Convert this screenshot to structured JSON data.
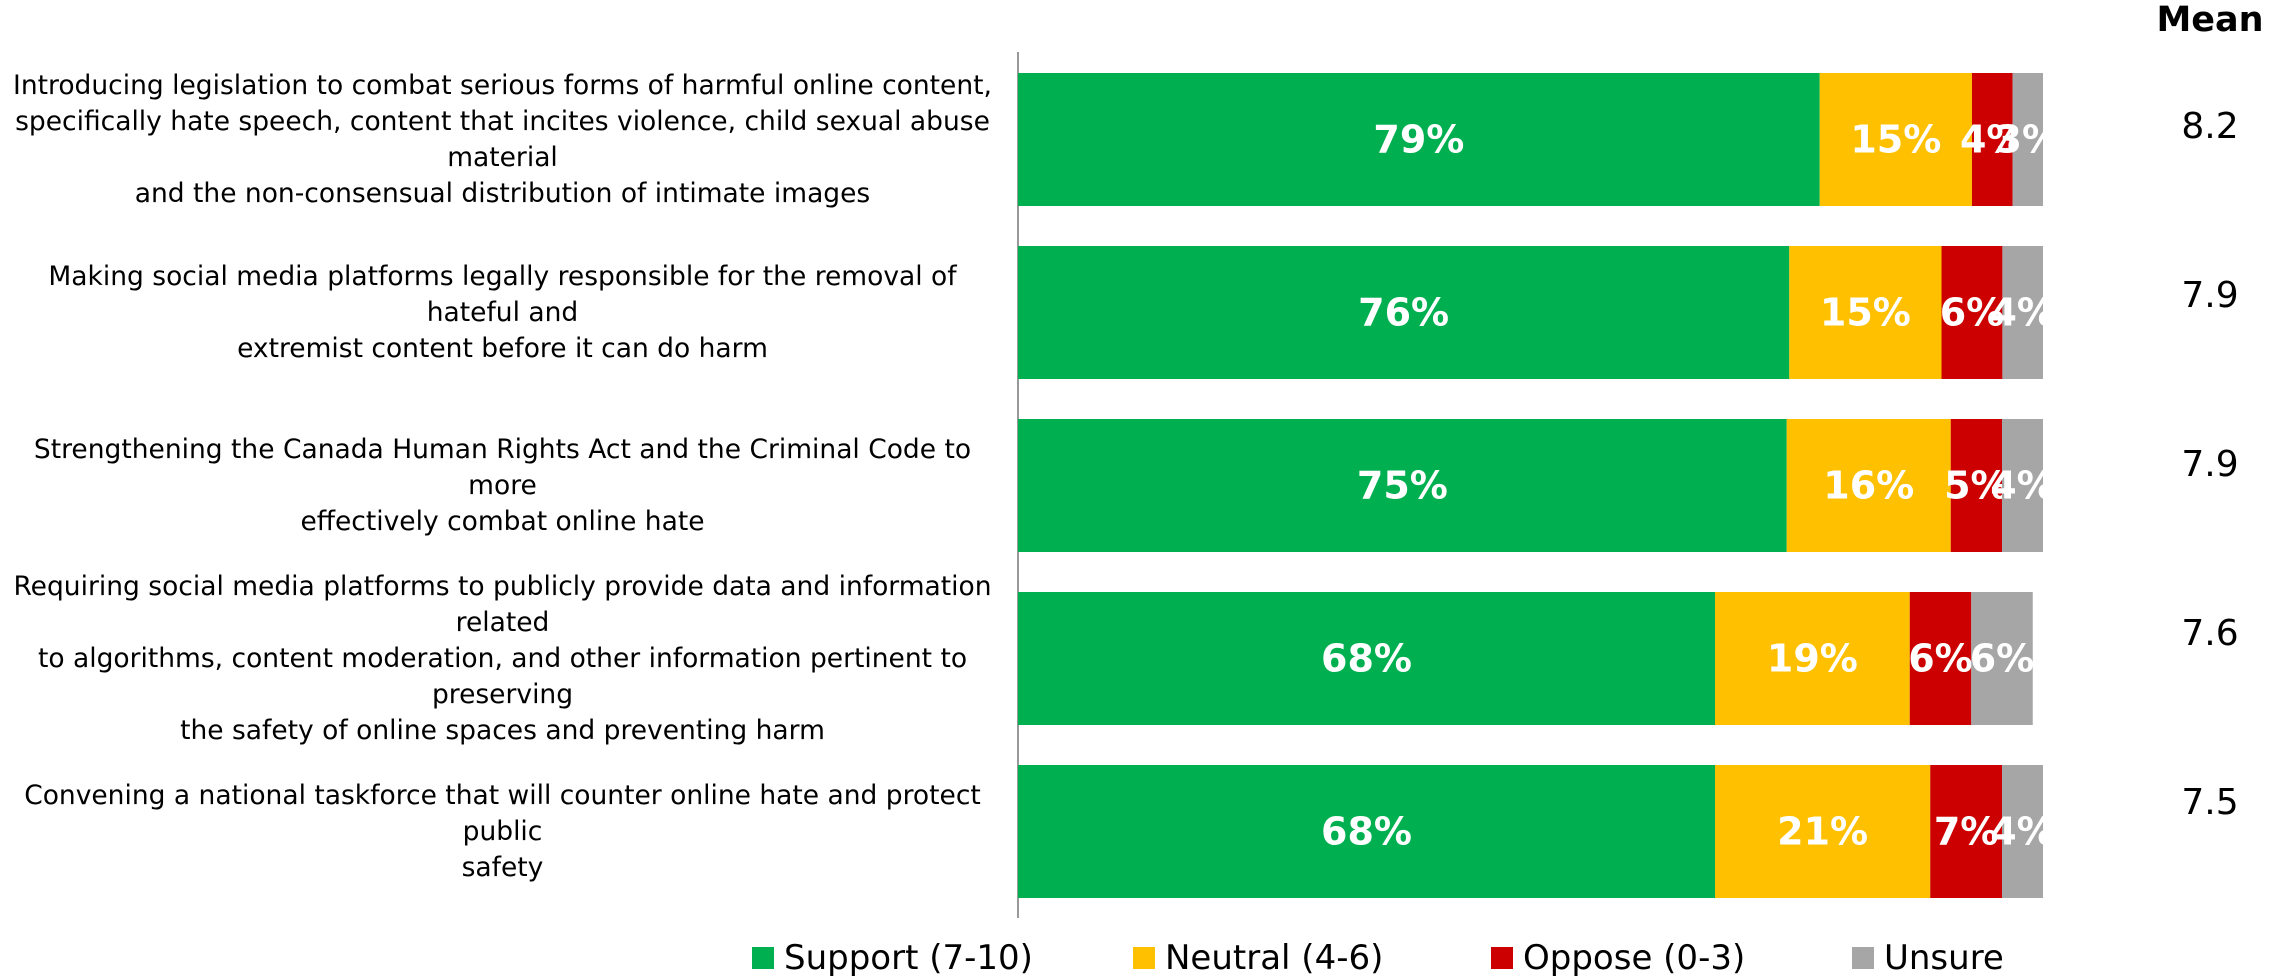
{
  "chart_data": {
    "type": "bar",
    "orientation": "horizontal",
    "stacked": true,
    "categories": [
      "Introducing legislation to combat serious forms of harmful online content, specifically hate speech, content that incites violence, child sexual abuse material and the non-consensual distribution of intimate images",
      "Making social media platforms legally responsible for the removal of hateful and extremist content before it can do harm",
      "Strengthening the Canada Human Rights Act and the Criminal Code to more effectively combat online hate",
      "Requiring social media platforms to publicly provide data and information related to algorithms, content moderation, and other information pertinent to preserving the safety of online spaces and preventing harm",
      "Convening a national taskforce that will counter online hate and protect public safety"
    ],
    "category_lines": [
      [
        "Introducing legislation to combat serious forms of harmful online content,",
        "specifically hate speech, content that incites violence, child sexual abuse material",
        "and the non-consensual distribution of intimate images"
      ],
      [
        "Making social media platforms legally responsible for the removal of hateful and",
        "extremist content before it can do harm"
      ],
      [
        "Strengthening the Canada Human Rights Act and the Criminal Code to more",
        "effectively combat online hate"
      ],
      [
        "Requiring social media platforms to publicly provide data and information related",
        "to algorithms, content moderation, and other information pertinent to preserving",
        "the safety of online spaces and preventing harm"
      ],
      [
        "Convening a national taskforce that will counter online hate and protect public",
        "safety"
      ]
    ],
    "series": [
      {
        "name": "Support (7-10)",
        "color": "#00B050",
        "values": [
          79,
          76,
          75,
          68,
          68
        ]
      },
      {
        "name": "Neutral (4-6)",
        "color": "#FFC000",
        "values": [
          15,
          15,
          16,
          19,
          21
        ]
      },
      {
        "name": "Oppose (0-3)",
        "color": "#CC0000",
        "values": [
          4,
          6,
          5,
          6,
          7
        ]
      },
      {
        "name": "Unsure",
        "color": "#A6A6A6",
        "values": [
          3,
          4,
          4,
          6,
          4
        ]
      }
    ],
    "value_suffix": "%",
    "xlim": [
      0,
      100
    ],
    "mean_title": "Mean",
    "means": [
      "8.2",
      "7.9",
      "7.9",
      "7.6",
      "7.5"
    ],
    "legend_position": "bottom",
    "grid": false
  }
}
